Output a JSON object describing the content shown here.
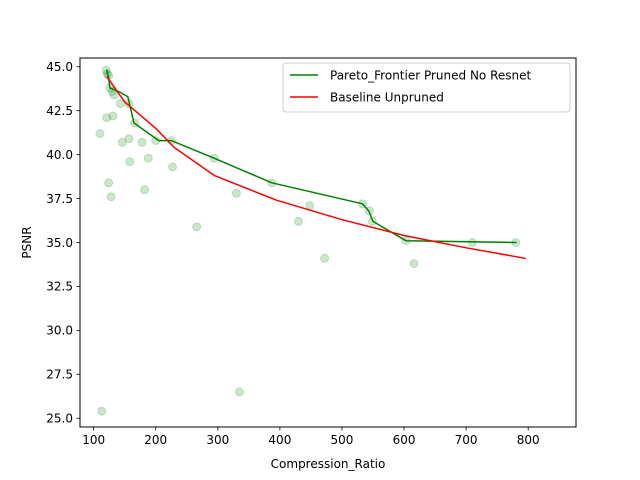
{
  "chart_data": {
    "type": "scatter",
    "title": "",
    "xlabel": "Compression_Ratio",
    "ylabel": "PSNR",
    "xlim": [
      78,
      877
    ],
    "ylim": [
      24.5,
      45.5
    ],
    "xticks": [
      100,
      200,
      300,
      400,
      500,
      600,
      700,
      800
    ],
    "yticks": [
      25.0,
      27.5,
      30.0,
      32.5,
      35.0,
      37.5,
      40.0,
      42.5,
      45.0
    ],
    "xtick_labels": [
      "100",
      "200",
      "300",
      "400",
      "500",
      "600",
      "700",
      "800"
    ],
    "ytick_labels": [
      "25.0",
      "27.5",
      "30.0",
      "32.5",
      "35.0",
      "37.5",
      "40.0",
      "42.5",
      "45.0"
    ],
    "grid": false,
    "legend_position": "top-right",
    "scatter": {
      "color": "#008000",
      "points": [
        [
          120,
          44.8
        ],
        [
          122,
          44.6
        ],
        [
          124,
          44.5
        ],
        [
          126,
          43.8
        ],
        [
          130,
          43.6
        ],
        [
          133,
          43.4
        ],
        [
          131,
          42.2
        ],
        [
          121,
          42.1
        ],
        [
          110,
          41.2
        ],
        [
          143,
          42.9
        ],
        [
          157,
          42.9
        ],
        [
          166,
          41.8
        ],
        [
          146,
          40.7
        ],
        [
          157,
          40.9
        ],
        [
          178,
          40.7
        ],
        [
          200,
          40.8
        ],
        [
          225,
          40.8
        ],
        [
          188,
          39.8
        ],
        [
          158,
          39.6
        ],
        [
          227,
          39.3
        ],
        [
          294,
          39.8
        ],
        [
          124,
          38.4
        ],
        [
          182,
          38.0
        ],
        [
          128,
          37.6
        ],
        [
          330,
          37.8
        ],
        [
          387,
          38.4
        ],
        [
          448,
          37.1
        ],
        [
          533,
          37.2
        ],
        [
          544,
          36.8
        ],
        [
          549,
          36.2
        ],
        [
          430,
          36.2
        ],
        [
          266,
          35.9
        ],
        [
          603,
          35.1
        ],
        [
          710,
          35.0
        ],
        [
          780,
          35.0
        ],
        [
          472,
          34.1
        ],
        [
          616,
          33.8
        ],
        [
          335,
          26.5
        ],
        [
          113,
          25.4
        ]
      ]
    },
    "series": [
      {
        "name": "Pareto_Frontier Pruned No Resnet",
        "color": "#008000",
        "x": [
          121,
          124,
          126,
          140,
          155,
          165,
          205,
          225,
          294,
          387,
          533,
          543,
          550,
          603,
          780
        ],
        "y": [
          44.8,
          44.4,
          43.8,
          43.6,
          43.3,
          41.8,
          40.8,
          40.8,
          39.8,
          38.4,
          37.2,
          36.8,
          36.2,
          35.1,
          35.0
        ]
      },
      {
        "name": "Baseline Unpruned",
        "color": "#ff0000",
        "x": [
          122,
          150,
          200,
          230,
          295,
          395,
          500,
          600,
          700,
          795
        ],
        "y": [
          44.4,
          43.0,
          41.5,
          40.4,
          38.8,
          37.4,
          36.3,
          35.4,
          34.7,
          34.1
        ]
      }
    ]
  }
}
